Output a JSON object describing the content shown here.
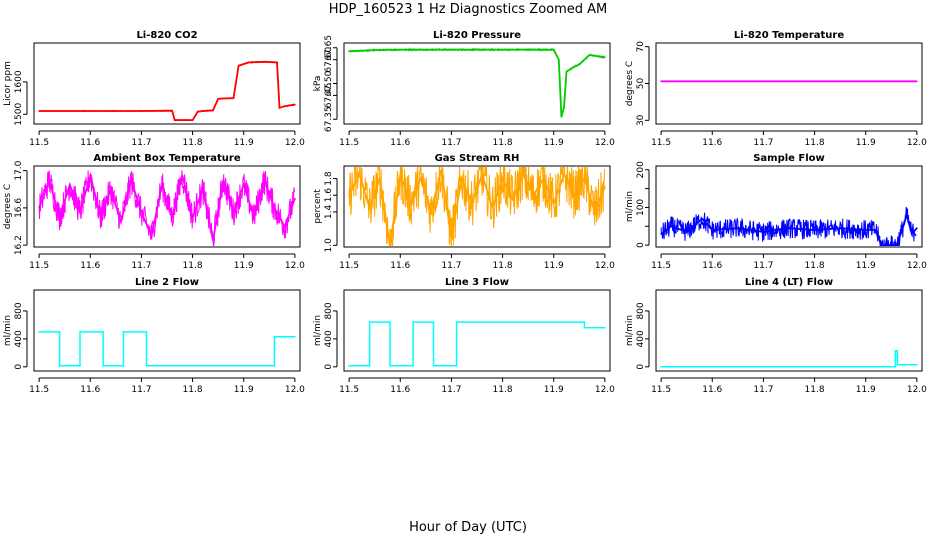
{
  "title": "HDP_160523  1 Hz Diagnostics Zoomed AM",
  "xlabel": "Hour of Day (UTC)",
  "chart_data": [
    {
      "type": "line",
      "title": "Li-820 CO2",
      "ylabel": "Licor ppm",
      "color": "#ff0000",
      "xlim": [
        11.49,
        12.01
      ],
      "ylim": [
        1470,
        1720
      ],
      "xticks": [
        11.5,
        11.6,
        11.7,
        11.8,
        11.9,
        12.0
      ],
      "xtick_labels": [
        "11.5",
        "11.6",
        "11.7",
        "11.8",
        "11.9",
        "12.0"
      ],
      "yticks": [
        1500,
        1600
      ],
      "ytick_labels": [
        "1500",
        "1600"
      ],
      "x": [
        11.5,
        11.6,
        11.7,
        11.76,
        11.765,
        11.8,
        11.81,
        11.82,
        11.84,
        11.85,
        11.88,
        11.89,
        11.91,
        11.94,
        11.965,
        11.97,
        11.98,
        12.0
      ],
      "y": [
        1510,
        1510,
        1510,
        1511,
        1482,
        1482,
        1508,
        1510,
        1512,
        1548,
        1550,
        1650,
        1660,
        1662,
        1660,
        1520,
        1525,
        1530
      ]
    },
    {
      "type": "line",
      "title": "Li-820 Pressure",
      "ylabel": "kPa",
      "color": "#00cc00",
      "xlim": [
        11.49,
        12.01
      ],
      "ylim": [
        67.33,
        67.67
      ],
      "xticks": [
        11.5,
        11.6,
        11.7,
        11.8,
        11.9,
        12.0
      ],
      "xtick_labels": [
        "11.5",
        "11.6",
        "11.7",
        "11.8",
        "11.9",
        "12.0"
      ],
      "yticks": [
        67.35,
        67.45,
        67.5,
        67.6,
        67.65
      ],
      "ytick_labels": [
        "67.35",
        "67.45",
        "67.50",
        "67.60",
        "67.65"
      ],
      "x": [
        11.5,
        11.55,
        11.6,
        11.7,
        11.8,
        11.9,
        11.91,
        11.915,
        11.92,
        11.925,
        11.94,
        11.95,
        11.96,
        11.97,
        12.0
      ],
      "y": [
        67.635,
        67.64,
        67.642,
        67.642,
        67.642,
        67.642,
        67.6,
        67.36,
        67.4,
        67.55,
        67.57,
        67.58,
        67.6,
        67.62,
        67.61
      ]
    },
    {
      "type": "line",
      "title": "Li-820 Temperature",
      "ylabel": "degrees C",
      "color": "#ff00ff",
      "xlim": [
        11.49,
        12.01
      ],
      "ylim": [
        28,
        72
      ],
      "xticks": [
        11.5,
        11.6,
        11.7,
        11.8,
        11.9,
        12.0
      ],
      "xtick_labels": [
        "11.5",
        "11.6",
        "11.7",
        "11.8",
        "11.9",
        "12.0"
      ],
      "yticks": [
        30,
        50,
        70
      ],
      "ytick_labels": [
        "30",
        "50",
        "70"
      ],
      "x": [
        11.5,
        12.0
      ],
      "y": [
        51.2,
        51.2
      ]
    },
    {
      "type": "line",
      "title": "Ambient Box Temperature",
      "ylabel": "degrees C",
      "color": "#ff00ff",
      "xlim": [
        11.49,
        12.01
      ],
      "ylim": [
        16.18,
        17.05
      ],
      "xticks": [
        11.5,
        11.6,
        11.7,
        11.8,
        11.9,
        12.0
      ],
      "xtick_labels": [
        "11.5",
        "11.6",
        "11.7",
        "11.8",
        "11.9",
        "12.0"
      ],
      "yticks": [
        16.2,
        16.6,
        17.0
      ],
      "ytick_labels": [
        "16.2",
        "16.6",
        "17.0"
      ],
      "x": [
        11.5,
        11.52,
        11.54,
        11.56,
        11.58,
        11.6,
        11.62,
        11.64,
        11.66,
        11.68,
        11.7,
        11.72,
        11.74,
        11.76,
        11.78,
        11.8,
        11.82,
        11.84,
        11.86,
        11.88,
        11.9,
        11.92,
        11.94,
        11.96,
        11.98,
        12.0
      ],
      "y": [
        16.6,
        16.9,
        16.5,
        16.85,
        16.55,
        16.95,
        16.5,
        16.8,
        16.45,
        16.9,
        16.55,
        16.3,
        16.85,
        16.5,
        16.95,
        16.5,
        16.8,
        16.25,
        16.9,
        16.55,
        16.85,
        16.5,
        16.9,
        16.6,
        16.4,
        16.7
      ]
    },
    {
      "type": "line",
      "title": "Gas Stream RH",
      "ylabel": "percent",
      "color": "#ffa500",
      "xlim": [
        11.49,
        12.01
      ],
      "ylim": [
        0.98,
        1.95
      ],
      "xticks": [
        11.5,
        11.6,
        11.7,
        11.8,
        11.9,
        12.0
      ],
      "xtick_labels": [
        "11.5",
        "11.6",
        "11.7",
        "11.8",
        "11.9",
        "12.0"
      ],
      "yticks": [
        1.0,
        1.4,
        1.6,
        1.8
      ],
      "ytick_labels": [
        "1.0",
        "1.4",
        "1.6",
        "1.8"
      ],
      "x": [
        11.5,
        11.52,
        11.54,
        11.56,
        11.58,
        11.6,
        11.62,
        11.64,
        11.66,
        11.68,
        11.7,
        11.72,
        11.74,
        11.76,
        11.78,
        11.8,
        11.82,
        11.84,
        11.86,
        11.88,
        11.9,
        11.92,
        11.94,
        11.96,
        11.98,
        12.0
      ],
      "y": [
        1.6,
        1.85,
        1.45,
        1.8,
        1.0,
        1.85,
        1.5,
        1.8,
        1.4,
        1.9,
        1.1,
        1.8,
        1.5,
        1.85,
        1.45,
        1.8,
        1.55,
        1.85,
        1.6,
        1.8,
        1.5,
        1.85,
        1.6,
        1.8,
        1.4,
        1.7
      ]
    },
    {
      "type": "line",
      "title": "Sample Flow",
      "ylabel": "ml/min",
      "color": "#0000ff",
      "xlim": [
        11.49,
        12.01
      ],
      "ylim": [
        -5,
        210
      ],
      "xticks": [
        11.5,
        11.6,
        11.7,
        11.8,
        11.9,
        12.0
      ],
      "xtick_labels": [
        "11.5",
        "11.6",
        "11.7",
        "11.8",
        "11.9",
        "12.0"
      ],
      "yticks": [
        0,
        50,
        100,
        150,
        200
      ],
      "ytick_labels": [
        "0",
        "",
        "100",
        "",
        "200"
      ],
      "x": [
        11.5,
        11.52,
        11.55,
        11.58,
        11.6,
        11.65,
        11.7,
        11.75,
        11.8,
        11.85,
        11.9,
        11.92,
        11.93,
        11.96,
        11.97,
        11.98,
        11.99,
        12.0
      ],
      "y": [
        30,
        50,
        35,
        70,
        40,
        45,
        35,
        45,
        40,
        45,
        40,
        40,
        0,
        0,
        35,
        80,
        30,
        45
      ]
    },
    {
      "type": "line",
      "title": "Line 2 Flow",
      "ylabel": "ml/min",
      "color": "#00ffff",
      "xlim": [
        11.49,
        12.01
      ],
      "ylim": [
        -60,
        1100
      ],
      "xticks": [
        11.5,
        11.6,
        11.7,
        11.8,
        11.9,
        12.0
      ],
      "xtick_labels": [
        "11.5",
        "11.6",
        "11.7",
        "11.8",
        "11.9",
        "12.0"
      ],
      "yticks": [
        0,
        400,
        800
      ],
      "ytick_labels": [
        "0",
        "400",
        "800"
      ],
      "x": [
        11.5,
        11.54,
        11.54,
        11.58,
        11.58,
        11.625,
        11.625,
        11.665,
        11.665,
        11.71,
        11.71,
        11.96,
        11.96,
        12.0
      ],
      "y": [
        500,
        500,
        15,
        15,
        500,
        500,
        15,
        15,
        500,
        500,
        15,
        15,
        430,
        430
      ]
    },
    {
      "type": "line",
      "title": "Line 3 Flow",
      "ylabel": "ml/min",
      "color": "#00ffff",
      "xlim": [
        11.49,
        12.01
      ],
      "ylim": [
        -60,
        1100
      ],
      "xticks": [
        11.5,
        11.6,
        11.7,
        11.8,
        11.9,
        12.0
      ],
      "xtick_labels": [
        "11.5",
        "11.6",
        "11.7",
        "11.8",
        "11.9",
        "12.0"
      ],
      "yticks": [
        0,
        400,
        800
      ],
      "ytick_labels": [
        "0",
        "400",
        "800"
      ],
      "x": [
        11.5,
        11.54,
        11.54,
        11.58,
        11.58,
        11.625,
        11.625,
        11.665,
        11.665,
        11.71,
        11.71,
        11.96,
        11.96,
        12.0
      ],
      "y": [
        15,
        15,
        640,
        640,
        15,
        15,
        640,
        640,
        15,
        15,
        640,
        640,
        560,
        560
      ]
    },
    {
      "type": "line",
      "title": "Line 4 (LT) Flow",
      "ylabel": "ml/min",
      "color": "#00ffff",
      "xlim": [
        11.49,
        12.01
      ],
      "ylim": [
        -60,
        1100
      ],
      "xticks": [
        11.5,
        11.6,
        11.7,
        11.8,
        11.9,
        12.0
      ],
      "xtick_labels": [
        "11.5",
        "11.6",
        "11.7",
        "11.8",
        "11.9",
        "12.0"
      ],
      "yticks": [
        0,
        400,
        800
      ],
      "ytick_labels": [
        "0",
        "400",
        "800"
      ],
      "x": [
        11.5,
        11.9,
        11.958,
        11.958,
        11.962,
        11.962,
        12.0
      ],
      "y": [
        0,
        0,
        0,
        230,
        230,
        30,
        30
      ]
    }
  ]
}
